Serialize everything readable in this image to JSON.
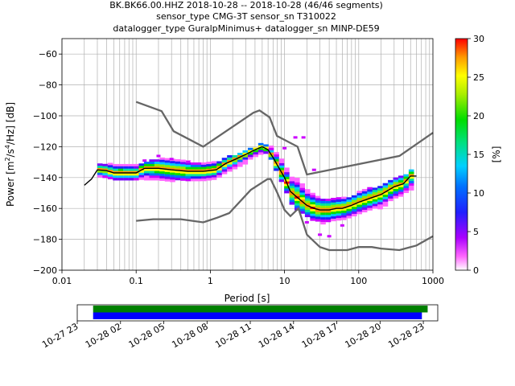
{
  "title": {
    "line1": "BK.BK66.00.HHZ   2018-10-28 -- 2018-10-28  (46/46 segments)",
    "line2": "sensor_type CMG-3T sensor_sn T310022",
    "line3": "datalogger_type GuralpMinimus+ datalogger_sn MINP-DE59"
  },
  "chart_data": [
    {
      "type": "heatmap",
      "xlabel": "Period [s]",
      "ylabel": "Power [m²/s⁴/Hz] [dB]",
      "xscale": "log",
      "xlim": [
        0.01,
        1000
      ],
      "ylim": [
        -200,
        -50
      ],
      "grid": true,
      "x_ticks": [
        {
          "v": 0.01,
          "label": "0.01"
        },
        {
          "v": 0.1,
          "label": "0.1"
        },
        {
          "v": 1,
          "label": "1"
        },
        {
          "v": 10,
          "label": "10"
        },
        {
          "v": 100,
          "label": "100"
        },
        {
          "v": 1000,
          "label": "1000"
        }
      ],
      "y_ticks": [
        {
          "v": -60,
          "label": "−60"
        },
        {
          "v": -80,
          "label": "−80"
        },
        {
          "v": -100,
          "label": "−100"
        },
        {
          "v": -120,
          "label": "−120"
        },
        {
          "v": -140,
          "label": "−140"
        },
        {
          "v": -160,
          "label": "−160"
        },
        {
          "v": -180,
          "label": "−180"
        },
        {
          "v": -200,
          "label": "−200"
        }
      ],
      "colorbar": {
        "label": "[%]",
        "range": [
          0,
          30
        ],
        "ticks": [
          {
            "v": 0,
            "label": "0"
          },
          {
            "v": 5,
            "label": "5"
          },
          {
            "v": 10,
            "label": "10"
          },
          {
            "v": 15,
            "label": "15"
          },
          {
            "v": 20,
            "label": "20"
          },
          {
            "v": 25,
            "label": "25"
          },
          {
            "v": 30,
            "label": "30"
          }
        ]
      },
      "nhnm": [
        [
          0.1,
          -91
        ],
        [
          0.22,
          -97
        ],
        [
          0.32,
          -110
        ],
        [
          0.8,
          -120
        ],
        [
          3.8,
          -98
        ],
        [
          4.6,
          -96.5
        ],
        [
          6.3,
          -101
        ],
        [
          7.9,
          -113
        ],
        [
          15,
          -120
        ],
        [
          20,
          -138
        ],
        [
          354,
          -126
        ],
        [
          1000,
          -111
        ]
      ],
      "nlnm": [
        [
          0.1,
          -168
        ],
        [
          0.17,
          -167
        ],
        [
          0.4,
          -167
        ],
        [
          0.8,
          -169
        ],
        [
          1.24,
          -166
        ],
        [
          1.8,
          -163
        ],
        [
          3.5,
          -148
        ],
        [
          5.9,
          -141
        ],
        [
          6.5,
          -141
        ],
        [
          8,
          -150
        ],
        [
          10,
          -161
        ],
        [
          12,
          -165
        ],
        [
          15.4,
          -160
        ],
        [
          20,
          -177
        ],
        [
          30,
          -185
        ],
        [
          40,
          -187
        ],
        [
          70,
          -187
        ],
        [
          100,
          -185
        ],
        [
          150,
          -185
        ],
        [
          200,
          -186
        ],
        [
          354,
          -187
        ],
        [
          600,
          -184
        ],
        [
          1000,
          -178
        ]
      ],
      "mode": [
        [
          0.02,
          -145
        ],
        [
          0.025,
          -141
        ],
        [
          0.03,
          -135
        ],
        [
          0.04,
          -135.5
        ],
        [
          0.05,
          -137
        ],
        [
          0.07,
          -137
        ],
        [
          0.1,
          -137
        ],
        [
          0.13,
          -134
        ],
        [
          0.2,
          -134
        ],
        [
          0.3,
          -135
        ],
        [
          0.5,
          -136
        ],
        [
          0.8,
          -136
        ],
        [
          1.2,
          -135
        ],
        [
          1.6,
          -131
        ],
        [
          2.2,
          -128
        ],
        [
          3,
          -125
        ],
        [
          4,
          -122
        ],
        [
          5,
          -120
        ],
        [
          6,
          -122
        ],
        [
          7,
          -127
        ],
        [
          8,
          -132
        ],
        [
          10,
          -140
        ],
        [
          12,
          -149
        ],
        [
          15,
          -153
        ],
        [
          20,
          -158
        ],
        [
          25,
          -160
        ],
        [
          30,
          -161
        ],
        [
          40,
          -161
        ],
        [
          50,
          -160
        ],
        [
          60,
          -160
        ],
        [
          80,
          -158
        ],
        [
          100,
          -156
        ],
        [
          150,
          -153
        ],
        [
          200,
          -151
        ],
        [
          300,
          -146
        ],
        [
          400,
          -144
        ],
        [
          500,
          -139
        ],
        [
          600,
          -139
        ]
      ],
      "cloud_upper": [
        [
          0.03,
          -132
        ],
        [
          0.06,
          -131
        ],
        [
          0.1,
          -132
        ],
        [
          0.2,
          -128
        ],
        [
          0.4,
          -129
        ],
        [
          0.8,
          -131
        ],
        [
          1.2,
          -130
        ],
        [
          2,
          -126
        ],
        [
          3,
          -123
        ],
        [
          4,
          -121
        ],
        [
          5,
          -118
        ],
        [
          6,
          -119
        ],
        [
          7,
          -121
        ],
        [
          8,
          -125
        ],
        [
          10,
          -131
        ],
        [
          12,
          -140
        ],
        [
          15,
          -141
        ],
        [
          20,
          -148
        ],
        [
          30,
          -154
        ],
        [
          50,
          -154
        ],
        [
          80,
          -153
        ],
        [
          100,
          -150
        ],
        [
          150,
          -147
        ],
        [
          200,
          -146
        ],
        [
          300,
          -141
        ],
        [
          400,
          -139
        ],
        [
          500,
          -136
        ],
        [
          700,
          -136
        ]
      ],
      "cloud_lower": [
        [
          0.03,
          -140
        ],
        [
          0.06,
          -141
        ],
        [
          0.1,
          -141
        ],
        [
          0.2,
          -141
        ],
        [
          0.4,
          -142
        ],
        [
          0.8,
          -141
        ],
        [
          1.2,
          -140
        ],
        [
          2,
          -135
        ],
        [
          3,
          -130
        ],
        [
          4,
          -126
        ],
        [
          5,
          -124
        ],
        [
          6,
          -125
        ],
        [
          7,
          -130
        ],
        [
          8,
          -136
        ],
        [
          10,
          -146
        ],
        [
          12,
          -155
        ],
        [
          15,
          -161
        ],
        [
          20,
          -164
        ],
        [
          30,
          -170
        ],
        [
          50,
          -168
        ],
        [
          80,
          -166
        ],
        [
          100,
          -163
        ],
        [
          150,
          -161
        ],
        [
          200,
          -160
        ],
        [
          300,
          -154
        ],
        [
          400,
          -151
        ],
        [
          500,
          -148
        ],
        [
          700,
          -148
        ]
      ],
      "outliers_upper": [
        [
          0.13,
          -129
        ],
        [
          0.2,
          -126
        ],
        [
          0.3,
          -128
        ],
        [
          0.5,
          -130
        ],
        [
          10,
          -121
        ],
        [
          14,
          -114
        ],
        [
          18,
          -114
        ],
        [
          25,
          -135
        ]
      ],
      "outliers_lower": [
        [
          20,
          -169
        ],
        [
          30,
          -177
        ],
        [
          40,
          -178
        ],
        [
          60,
          -171
        ]
      ]
    },
    {
      "type": "bar",
      "name": "timeline",
      "x_ticks": [
        "10-27 23",
        "10-28 02",
        "10-28 05",
        "10-28 08",
        "10-28 11",
        "10-28 14",
        "10-28 17",
        "10-28 20",
        "10-28 23"
      ],
      "x_range_hours": [
        23,
        48
      ],
      "series": [
        {
          "color": "#008000",
          "start_hours": 24.1,
          "end_hours": 47.3
        },
        {
          "color": "#0000ff",
          "start_hours": 24.1,
          "end_hours": 46.9
        }
      ]
    }
  ],
  "colors": {
    "nm_curve": "#666666",
    "mode_line": "#000000",
    "grid": "#b0b0b0"
  }
}
